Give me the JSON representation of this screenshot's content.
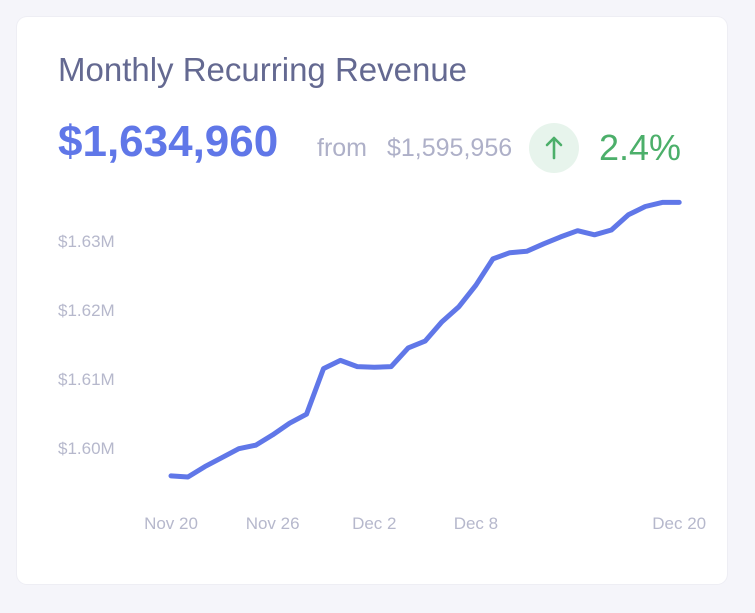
{
  "card": {
    "title": "Monthly Recurring Revenue",
    "current_value": "$1,634,960",
    "from_label": "from",
    "previous_value": "$1,595,956",
    "change_percent": "2.4%",
    "change_icon": "arrow-up-icon",
    "colors": {
      "accent": "#6077e8",
      "positive": "#4caf6a",
      "positive_bg": "#e7f4ec",
      "muted": "#b6b8cc",
      "title": "#646991"
    }
  },
  "chart_data": {
    "type": "line",
    "title": "",
    "xlabel": "",
    "ylabel": "",
    "grid": false,
    "y_ticks": [
      {
        "value": 1630000,
        "label": "$1.63M"
      },
      {
        "value": 1620000,
        "label": "$1.62M"
      },
      {
        "value": 1610000,
        "label": "$1.61M"
      },
      {
        "value": 1600000,
        "label": "$1.60M"
      }
    ],
    "x_ticks": [
      {
        "day": 0,
        "label": "Nov 20"
      },
      {
        "day": 6,
        "label": "Nov 26"
      },
      {
        "day": 12,
        "label": "Dec 2"
      },
      {
        "day": 18,
        "label": "Dec 8"
      },
      {
        "day": 30,
        "label": "Dec 20"
      }
    ],
    "series": [
      {
        "color": "#6077e8",
        "points": [
          [
            0,
            1595950
          ],
          [
            1,
            1595800
          ],
          [
            2,
            1597300
          ],
          [
            3,
            1598600
          ],
          [
            4,
            1599900
          ],
          [
            5,
            1600400
          ],
          [
            6,
            1601900
          ],
          [
            7,
            1603600
          ],
          [
            8,
            1604900
          ],
          [
            9,
            1611500
          ],
          [
            10,
            1612700
          ],
          [
            11,
            1611800
          ],
          [
            12,
            1611700
          ],
          [
            13,
            1611800
          ],
          [
            14,
            1614500
          ],
          [
            15,
            1615500
          ],
          [
            16,
            1618300
          ],
          [
            17,
            1620500
          ],
          [
            18,
            1623600
          ],
          [
            19,
            1627400
          ],
          [
            20,
            1628300
          ],
          [
            21,
            1628500
          ],
          [
            22,
            1629600
          ],
          [
            23,
            1630600
          ],
          [
            24,
            1631500
          ],
          [
            25,
            1630900
          ],
          [
            26,
            1631600
          ],
          [
            27,
            1633800
          ],
          [
            28,
            1635000
          ],
          [
            29,
            1635600
          ],
          [
            30,
            1635600
          ]
        ]
      }
    ]
  }
}
